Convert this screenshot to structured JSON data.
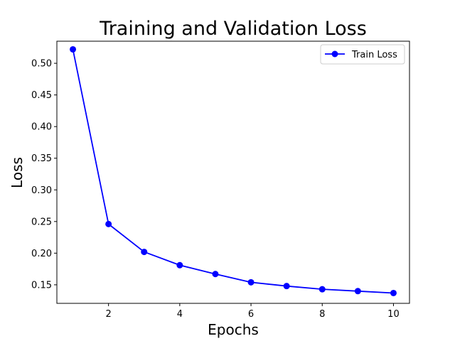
{
  "chart_data": {
    "type": "line",
    "title": "Training and Validation Loss",
    "xlabel": "Epochs",
    "ylabel": "Loss",
    "xlim": [
      0.55,
      10.45
    ],
    "ylim": [
      0.1207,
      0.5349
    ],
    "x_ticks": [
      2,
      4,
      6,
      8,
      10
    ],
    "y_ticks": [
      0.15,
      0.2,
      0.25,
      0.3,
      0.35,
      0.4,
      0.45,
      0.5
    ],
    "y_tick_labels": [
      "0.15",
      "0.20",
      "0.25",
      "0.30",
      "0.35",
      "0.40",
      "0.45",
      "0.50"
    ],
    "x": [
      1,
      2,
      3,
      4,
      5,
      6,
      7,
      8,
      9,
      10
    ],
    "series": [
      {
        "name": "Train Loss",
        "color": "#0000ff",
        "marker": "circle",
        "values": [
          0.522,
          0.246,
          0.202,
          0.181,
          0.167,
          0.154,
          0.148,
          0.143,
          0.14,
          0.137
        ]
      }
    ],
    "legend_position": "top-right",
    "grid": false
  }
}
